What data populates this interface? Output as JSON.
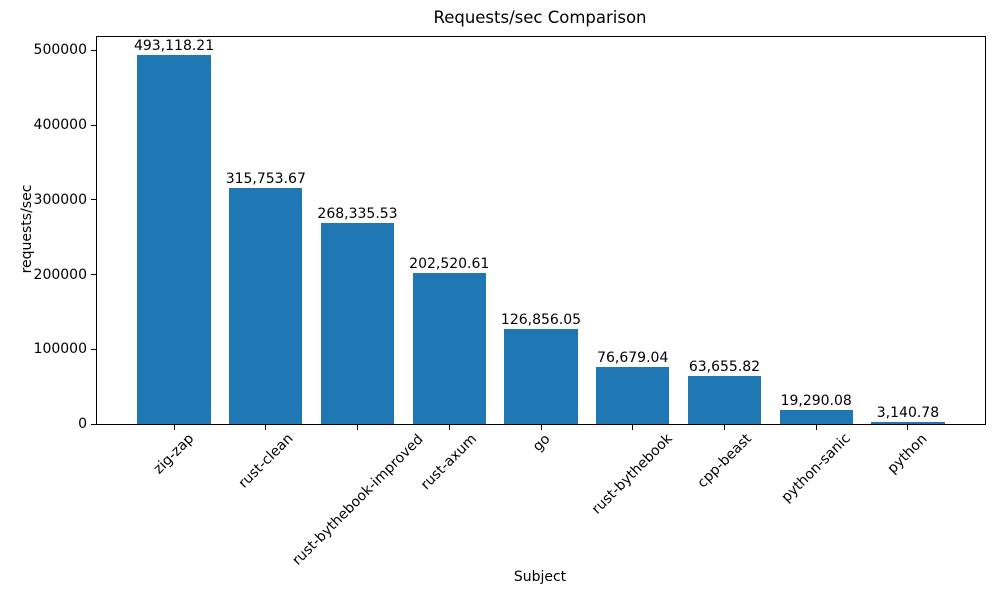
{
  "chart_data": {
    "type": "bar",
    "title": "Requests/sec Comparison",
    "xlabel": "Subject",
    "ylabel": "requests/sec",
    "categories": [
      "zig-zap",
      "rust-clean",
      "rust-bythebook-improved",
      "rust-axum",
      "go",
      "rust-bythebook",
      "cpp-beast",
      "python-sanic",
      "python"
    ],
    "values": [
      493118.21,
      315753.67,
      268335.53,
      202520.61,
      126856.05,
      76679.04,
      63655.82,
      19290.08,
      3140.78
    ],
    "value_labels": [
      "493,118.21",
      "315,753.67",
      "268,335.53",
      "202,520.61",
      "126,856.05",
      "76,679.04",
      "63,655.82",
      "19,290.08",
      "3,140.78"
    ],
    "yticks": [
      0,
      100000,
      200000,
      300000,
      400000,
      500000
    ],
    "ytick_labels": [
      "0",
      "100000",
      "200000",
      "300000",
      "400000",
      "500000"
    ],
    "ylim": [
      0,
      517774
    ],
    "xtick_rotation_deg": 45,
    "bar_color": "#1f77b4",
    "axis_color": "#000000",
    "background_color": "#ffffff",
    "grid": false,
    "legend": null
  }
}
